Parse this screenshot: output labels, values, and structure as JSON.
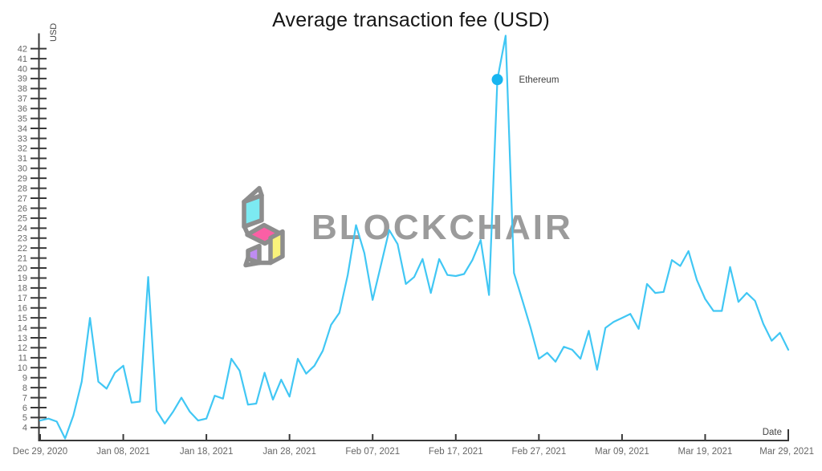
{
  "title": "Average transaction fee (USD)",
  "watermark": {
    "brand": "BLOCKCHAIR",
    "logo_colors": {
      "outline": "#8d8d8d",
      "cyan": "#7ceaf2",
      "pink": "#fb5fa5",
      "yellow": "#f9f27b",
      "purple": "#bf8cf2"
    }
  },
  "colors": {
    "background": "#ffffff",
    "line": "#41c7f4",
    "marker": "#17b5f0",
    "axis": "#383838",
    "tick_label": "#666666",
    "axis_title": "#444444",
    "title": "#161616",
    "highlight_label": "#3f3f3f"
  },
  "chart_data": {
    "type": "line",
    "title": "Average transaction fee (USD)",
    "grid": false,
    "legend": "none",
    "x_axis": {
      "title": "Date",
      "tick_labels": [
        "Dec 29, 2020",
        "Jan 08, 2021",
        "Jan 18, 2021",
        "Jan 28, 2021",
        "Feb 07, 2021",
        "Feb 17, 2021",
        "Feb 27, 2021",
        "Mar 09, 2021",
        "Mar 19, 2021",
        "Mar 29, 2021"
      ],
      "days_between_ticks": 10
    },
    "y_axis": {
      "title": "USD",
      "tick_min": 4,
      "tick_max": 42,
      "tick_step": 1,
      "range_min": 2.7,
      "range_max": 43.5
    },
    "series": [
      {
        "name": "Ethereum",
        "color": "#41c7f4",
        "values": [
          4.7,
          4.9,
          4.6,
          2.9,
          5.2,
          8.6,
          15.0,
          8.6,
          7.9,
          9.5,
          10.2,
          6.5,
          6.6,
          19.1,
          5.7,
          4.4,
          5.6,
          7.0,
          5.6,
          4.7,
          4.9,
          7.2,
          6.9,
          10.9,
          9.7,
          6.3,
          6.4,
          9.5,
          6.8,
          8.8,
          7.1,
          10.9,
          9.4,
          10.2,
          11.7,
          14.3,
          15.5,
          19.3,
          24.3,
          21.5,
          16.8,
          20.3,
          23.8,
          22.4,
          18.4,
          19.1,
          20.9,
          17.5,
          20.9,
          19.3,
          19.2,
          19.4,
          20.8,
          22.8,
          17.3,
          38.9,
          43.3,
          19.5,
          16.8,
          14.0,
          10.9,
          11.5,
          10.6,
          12.1,
          11.8,
          10.9,
          13.7,
          9.8,
          14.0,
          14.6,
          15.0,
          15.4,
          13.9,
          18.4,
          17.5,
          17.6,
          20.8,
          20.2,
          21.7,
          18.8,
          16.9,
          15.7,
          15.7,
          20.1,
          16.6,
          17.5,
          16.7,
          14.4,
          12.7,
          13.5,
          11.8
        ],
        "highlight": {
          "index": 55,
          "label": "Ethereum"
        }
      }
    ]
  }
}
